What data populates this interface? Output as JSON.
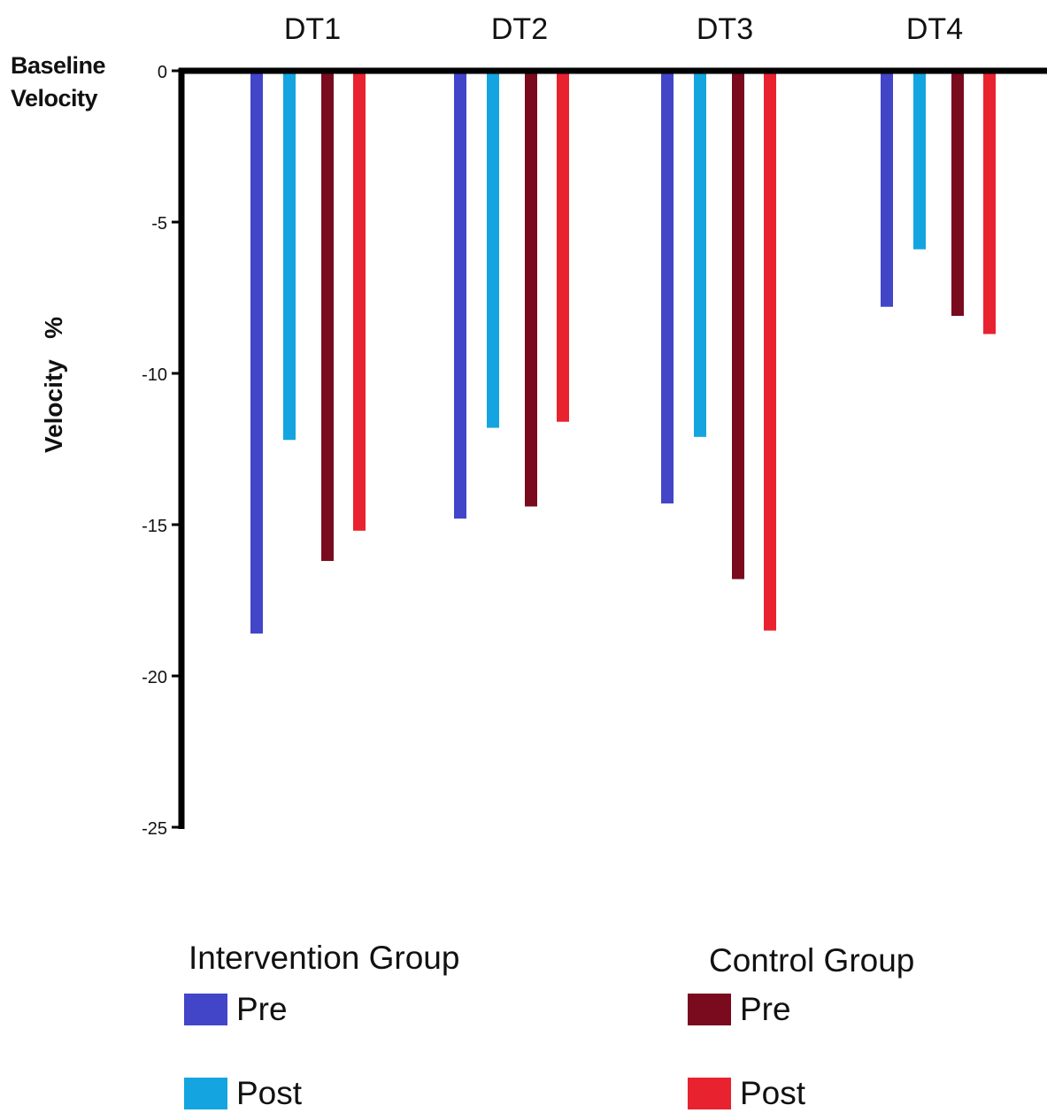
{
  "chart_data": {
    "type": "bar",
    "categories": [
      "DT1",
      "DT2",
      "DT3",
      "DT4"
    ],
    "series": [
      {
        "group": "Intervention Group",
        "name": "Pre",
        "color": "#4245c8",
        "values": [
          -18.6,
          -14.8,
          -14.3,
          -7.8
        ]
      },
      {
        "group": "Intervention Group",
        "name": "Post",
        "color": "#14a5e0",
        "values": [
          -12.2,
          -11.8,
          -12.1,
          -5.9
        ]
      },
      {
        "group": "Control Group",
        "name": "Pre",
        "color": "#7a0a1e",
        "values": [
          -16.2,
          -14.4,
          -16.8,
          -8.1
        ]
      },
      {
        "group": "Control Group",
        "name": "Post",
        "color": "#e8232f",
        "values": [
          -15.2,
          -11.6,
          -18.5,
          -8.7
        ]
      }
    ],
    "baseline_label": [
      "Baseline",
      "Velocity"
    ],
    "ylabel": "Velocity   %",
    "yticks": [
      0,
      -5,
      -10,
      -15,
      -20,
      -25
    ],
    "ytick_labels": [
      "0",
      "-5",
      "-10",
      "-15",
      "-20",
      "-25"
    ],
    "ylim": [
      -25,
      0
    ],
    "grid": false,
    "legend_position": "bottom"
  },
  "legend": {
    "intervention_title": "Intervention Group",
    "control_title": "Control Group",
    "pre_label": "Pre",
    "post_label": "Post"
  },
  "colors": {
    "axis": "#000000",
    "intervention_pre": "#4245c8",
    "intervention_post": "#14a5e0",
    "control_pre": "#7a0a1e",
    "control_post": "#e8232f"
  }
}
